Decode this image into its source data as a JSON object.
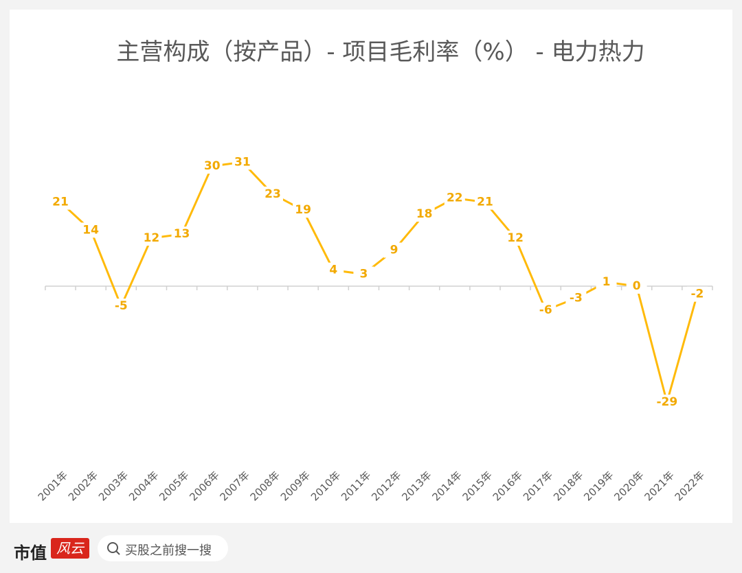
{
  "chart_data": {
    "type": "line",
    "title": "主营构成（按产品）- 项目毛利率（%） - 电力热力",
    "categories": [
      "2001年",
      "2002年",
      "2003年",
      "2004年",
      "2005年",
      "2006年",
      "2007年",
      "2008年",
      "2009年",
      "2010年",
      "2011年",
      "2012年",
      "2013年",
      "2014年",
      "2015年",
      "2016年",
      "2017年",
      "2018年",
      "2019年",
      "2020年",
      "2021年",
      "2022年"
    ],
    "values": [
      21,
      14,
      -5,
      12,
      13,
      30,
      31,
      23,
      19,
      4,
      3,
      9,
      18,
      22,
      21,
      12,
      -6,
      -3,
      1,
      0,
      -29,
      -2
    ],
    "color": "#FFBA0A",
    "label_color": "#F2A900"
  },
  "footer": {
    "brand": "市值",
    "brand_logo": "风云",
    "search_placeholder": "买股之前搜一搜"
  }
}
